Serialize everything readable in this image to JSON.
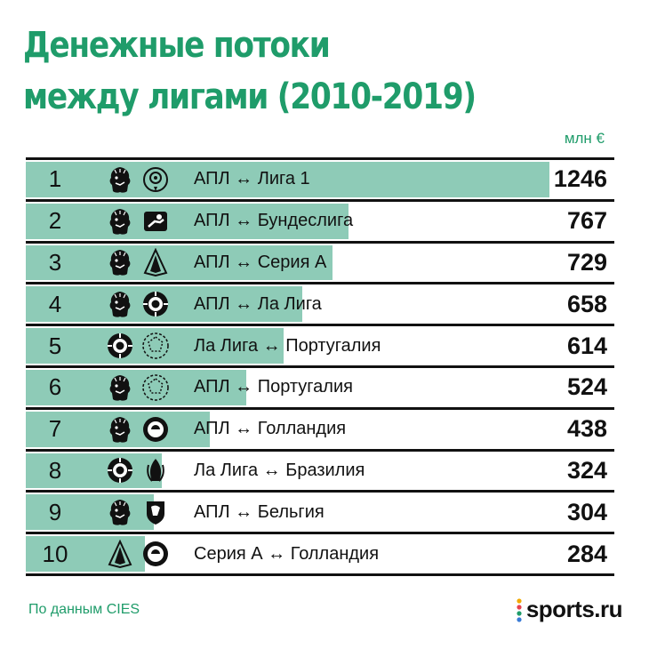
{
  "title": {
    "line1": "Денежные потоки",
    "line2": "между лигами (2010-2019)"
  },
  "unit": "млн €",
  "source": "По данным CIES",
  "brand": "sports.ru",
  "colors": {
    "accent": "#1f9c6a",
    "bar": "#8ecbb7",
    "rule": "#111111"
  },
  "chart_data": {
    "type": "bar",
    "title": "Денежные потоки между лигами (2010-2019)",
    "unit": "млн €",
    "categories": [
      "АПЛ ↔ Лига 1",
      "АПЛ ↔ Бундеслига",
      "АПЛ ↔ Серия А",
      "АПЛ ↔ Ла Лига",
      "Ла Лига ↔ Португалия",
      "АПЛ ↔ Португалия",
      "АПЛ ↔ Голландия",
      "Ла Лига ↔ Бразилия",
      "АПЛ ↔ Бельгия",
      "Серия А ↔ Голландия"
    ],
    "values": [
      1246,
      767,
      729,
      658,
      614,
      524,
      438,
      324,
      304,
      284
    ],
    "value_labels": [
      "1246",
      "767",
      "729",
      "658",
      "614",
      "524",
      "438",
      "324",
      "304",
      "284"
    ],
    "ranks": [
      "1",
      "2",
      "3",
      "4",
      "5",
      "6",
      "7",
      "8",
      "9",
      "10"
    ],
    "logos": [
      [
        "lion-crest-icon",
        "ligue1-icon"
      ],
      [
        "lion-crest-icon",
        "bundesliga-icon"
      ],
      [
        "lion-crest-icon",
        "serie-a-icon"
      ],
      [
        "lion-crest-icon",
        "laliga-icon"
      ],
      [
        "laliga-icon",
        "portugal-liga-icon"
      ],
      [
        "lion-crest-icon",
        "portugal-liga-icon"
      ],
      [
        "lion-crest-icon",
        "eredivisie-icon"
      ],
      [
        "laliga-icon",
        "brasileirao-icon"
      ],
      [
        "lion-crest-icon",
        "belgian-league-icon"
      ],
      [
        "serie-a-icon",
        "eredivisie-icon"
      ]
    ],
    "xlim": [
      0,
      1400
    ],
    "grid": false
  }
}
